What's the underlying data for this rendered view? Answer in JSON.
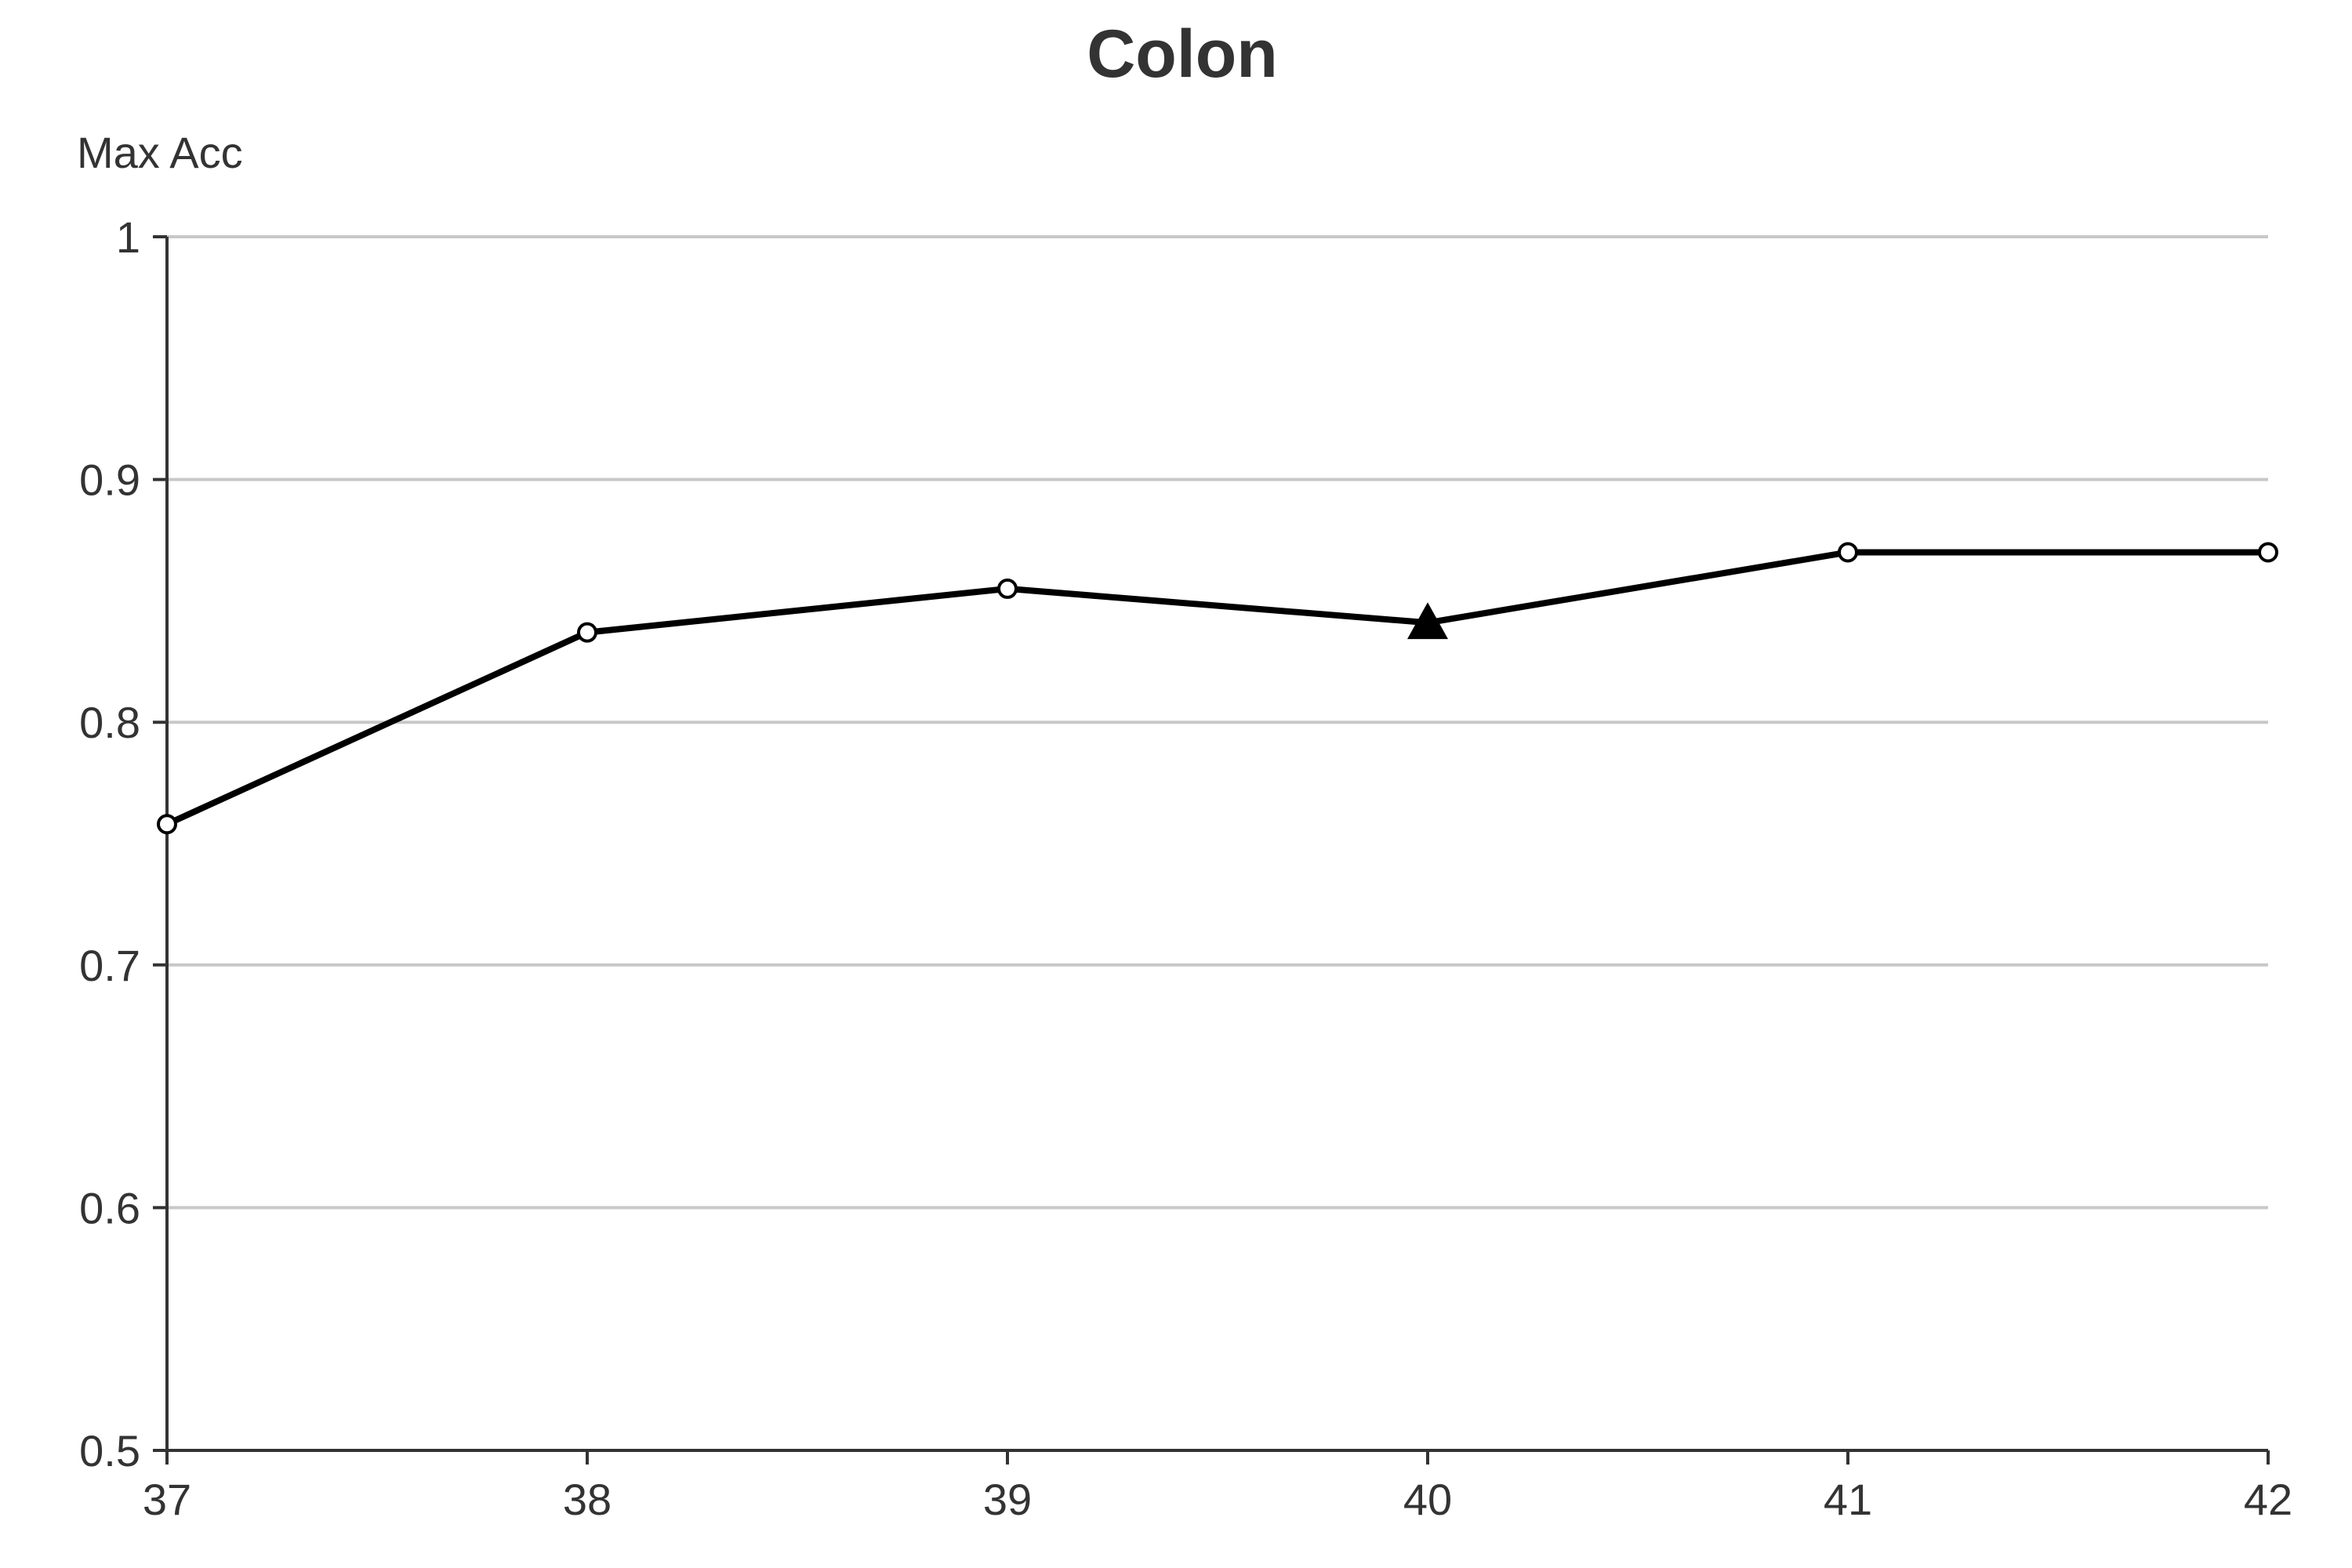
{
  "chart_data": {
    "type": "line",
    "title": "Colon",
    "xlabel": "",
    "ylabel": "Max Acc",
    "x": [
      37,
      38,
      39,
      40,
      41,
      42
    ],
    "x_tick_labels": [
      "37",
      "38",
      "39",
      "40",
      "41",
      "42"
    ],
    "y_tick_labels": [
      "0.5",
      "0.6",
      "0.7",
      "0.8",
      "0.9",
      "1"
    ],
    "xlim": [
      37,
      42
    ],
    "ylim": [
      0.5,
      1
    ],
    "grid": "horizontal",
    "series": [
      {
        "values": [
          0.758,
          0.837,
          0.855,
          0.841,
          0.87,
          0.87
        ],
        "color": "#000000",
        "highlight_index": 3,
        "highlight_marker": "triangle",
        "default_marker": "circle"
      }
    ]
  }
}
